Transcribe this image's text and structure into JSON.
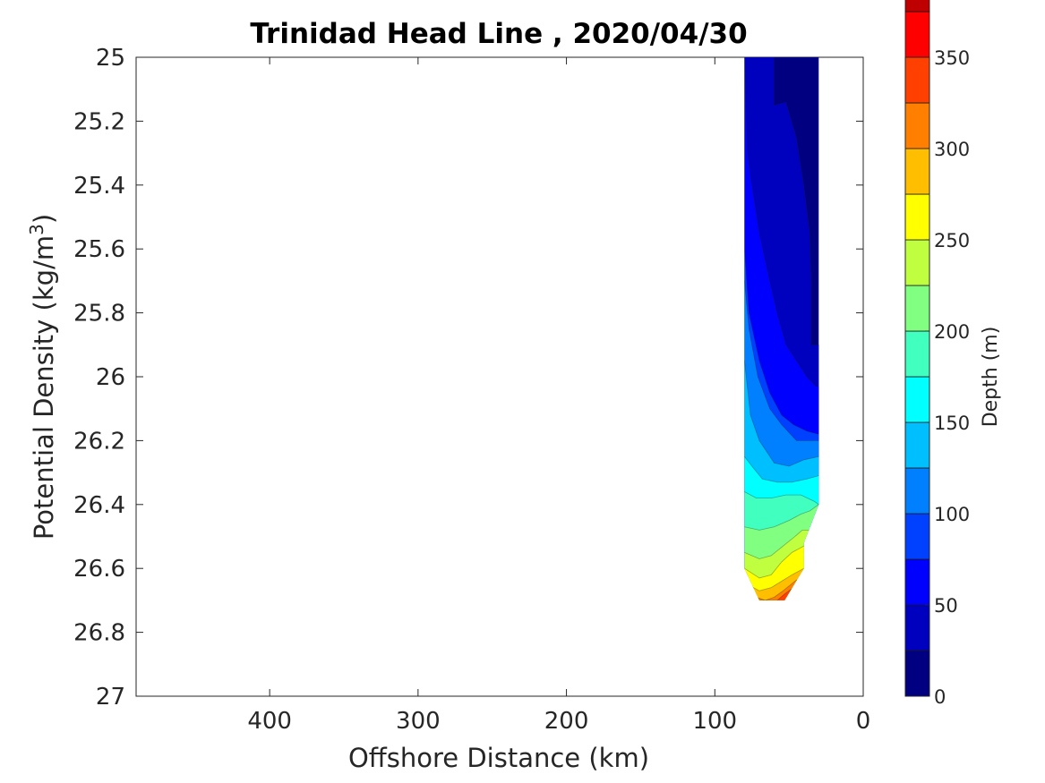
{
  "chart_data": {
    "type": "heatmap",
    "subtype": "filled-contour",
    "title": "Trinidad Head Line , 2020/04/30",
    "xlabel": "Offshore Distance (km)",
    "ylabel_main": "Potential Density (kg/m",
    "ylabel_sup": "3",
    "ylabel_close": ")",
    "xlim": [
      490,
      0
    ],
    "x_reversed": true,
    "ylim": [
      25,
      27
    ],
    "y_reversed": true,
    "xticks": [
      400,
      300,
      200,
      100,
      0
    ],
    "xtick_labels": [
      "400",
      "300",
      "200",
      "100",
      "0"
    ],
    "yticks": [
      25,
      25.2,
      25.4,
      25.6,
      25.8,
      26,
      26.2,
      26.4,
      26.6,
      26.8,
      27
    ],
    "ytick_labels": [
      "25",
      "25.2",
      "25.4",
      "25.6",
      "25.8",
      "26",
      "26.2",
      "26.4",
      "26.6",
      "26.8",
      "27"
    ],
    "grid": false,
    "colorbar": {
      "label": "Depth (m)",
      "range": [
        0,
        350
      ],
      "level_step": 25,
      "ticks": [
        0,
        50,
        100,
        150,
        200,
        250,
        300,
        350
      ],
      "tick_labels": [
        "0",
        "50",
        "100",
        "150",
        "200",
        "250",
        "300",
        "350"
      ],
      "colormap": [
        "#000080",
        "#0000bf",
        "#0000ff",
        "#0040ff",
        "#0080ff",
        "#00bfff",
        "#00ffff",
        "#40ffbf",
        "#80ff80",
        "#bfff40",
        "#ffff00",
        "#ffbf00",
        "#ff8000",
        "#ff4000",
        "#ff0000",
        "#bf0000"
      ],
      "placement": "right"
    },
    "data_extent": {
      "x_range_km": [
        30,
        80
      ],
      "density_range": [
        25,
        26.7
      ]
    },
    "depth_contours": [
      {
        "depth": 25,
        "boundary": [
          [
            60,
            25.0
          ],
          [
            60,
            25.15
          ],
          [
            52,
            25.14
          ],
          [
            45,
            25.25
          ],
          [
            40,
            25.4
          ],
          [
            36,
            25.55
          ],
          [
            35,
            25.7
          ],
          [
            35,
            25.9
          ],
          [
            30,
            25.9
          ]
        ]
      },
      {
        "depth": 50,
        "boundary": [
          [
            80,
            25.0
          ],
          [
            78,
            25.3
          ],
          [
            75,
            25.4
          ],
          [
            70,
            25.55
          ],
          [
            63,
            25.7
          ],
          [
            58,
            25.8
          ],
          [
            52,
            25.9
          ],
          [
            45,
            25.95
          ],
          [
            38,
            26.0
          ],
          [
            32,
            26.03
          ],
          [
            30,
            26.03
          ]
        ]
      },
      {
        "depth": 75,
        "boundary": [
          [
            80,
            25.0
          ],
          [
            80,
            25.6
          ],
          [
            77,
            25.8
          ],
          [
            70,
            25.95
          ],
          [
            63,
            26.05
          ],
          [
            55,
            26.12
          ],
          [
            47,
            26.15
          ],
          [
            38,
            26.17
          ],
          [
            30,
            26.18
          ]
        ]
      },
      {
        "depth": 100,
        "boundary": [
          [
            80,
            25.7
          ],
          [
            77,
            25.85
          ],
          [
            71,
            26.0
          ],
          [
            63,
            26.1
          ],
          [
            55,
            26.15
          ],
          [
            45,
            26.2
          ],
          [
            30,
            26.2
          ]
        ]
      },
      {
        "depth": 125,
        "boundary": [
          [
            80,
            25.95
          ],
          [
            76,
            26.12
          ],
          [
            70,
            26.2
          ],
          [
            60,
            26.27
          ],
          [
            50,
            26.28
          ],
          [
            40,
            26.26
          ],
          [
            30,
            26.25
          ]
        ]
      },
      {
        "depth": 150,
        "boundary": [
          [
            80,
            26.25
          ],
          [
            75,
            26.28
          ],
          [
            68,
            26.32
          ],
          [
            58,
            26.33
          ],
          [
            48,
            26.33
          ],
          [
            38,
            26.32
          ],
          [
            30,
            26.31
          ]
        ]
      },
      {
        "depth": 175,
        "boundary": [
          [
            80,
            26.36
          ],
          [
            72,
            26.38
          ],
          [
            62,
            26.38
          ],
          [
            52,
            26.37
          ],
          [
            42,
            26.37
          ],
          [
            33,
            26.39
          ],
          [
            30,
            26.4
          ]
        ]
      },
      {
        "depth": 200,
        "boundary": [
          [
            80,
            26.47
          ],
          [
            70,
            26.48
          ],
          [
            60,
            26.47
          ],
          [
            50,
            26.45
          ],
          [
            42,
            26.43
          ],
          [
            36,
            26.42
          ],
          [
            30,
            26.4
          ]
        ]
      },
      {
        "depth": 225,
        "boundary": [
          [
            80,
            26.55
          ],
          [
            70,
            26.57
          ],
          [
            62,
            26.56
          ],
          [
            54,
            26.53
          ],
          [
            46,
            26.5
          ],
          [
            41,
            26.48
          ]
        ]
      },
      {
        "depth": 250,
        "boundary": [
          [
            80,
            26.6
          ],
          [
            70,
            26.63
          ],
          [
            62,
            26.62
          ],
          [
            55,
            26.58
          ],
          [
            48,
            26.55
          ],
          [
            40,
            26.53
          ]
        ]
      },
      {
        "depth": 275,
        "boundary": [
          [
            78,
            26.65
          ],
          [
            70,
            26.67
          ],
          [
            62,
            26.66
          ],
          [
            55,
            26.64
          ],
          [
            48,
            26.62
          ],
          [
            40,
            26.6
          ]
        ]
      },
      {
        "depth": 300,
        "boundary": [
          [
            72,
            26.69
          ],
          [
            66,
            26.7
          ],
          [
            60,
            26.69
          ],
          [
            54,
            26.67
          ],
          [
            46,
            26.64
          ],
          [
            40,
            26.62
          ]
        ]
      },
      {
        "depth": 325,
        "boundary": [
          [
            58,
            26.7
          ],
          [
            53,
            26.68
          ],
          [
            47,
            26.66
          ]
        ]
      }
    ]
  }
}
